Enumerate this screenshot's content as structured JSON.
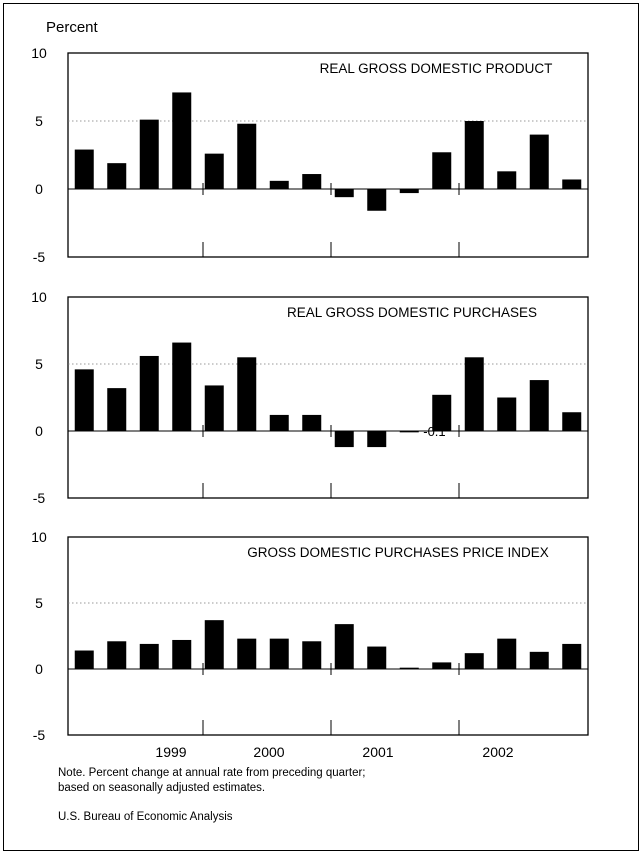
{
  "unit_label": "Percent",
  "x_labels": [
    "1999",
    "2000",
    "2001",
    "2002"
  ],
  "note_line1": "Note. Percent change at annual rate from preceding quarter;",
  "note_line2": "based on seasonally adjusted estimates.",
  "source": "U.S. Bureau of Economic Analysis",
  "chart_data": [
    {
      "type": "bar",
      "title": "REAL GROSS DOMESTIC PRODUCT",
      "ylim": [
        -5,
        10
      ],
      "yticks": [
        10,
        5,
        0,
        -5
      ],
      "values": [
        2.9,
        1.9,
        5.1,
        7.1,
        2.6,
        4.8,
        0.6,
        1.1,
        -0.6,
        -1.6,
        -0.3,
        2.7,
        5.0,
        1.3,
        4.0,
        0.7
      ],
      "annotations": []
    },
    {
      "type": "bar",
      "title": "REAL GROSS DOMESTIC PURCHASES",
      "ylim": [
        -5,
        10
      ],
      "yticks": [
        10,
        5,
        0,
        -5
      ],
      "values": [
        4.6,
        3.2,
        5.6,
        6.6,
        3.4,
        5.5,
        1.2,
        1.2,
        -1.2,
        -1.2,
        -0.1,
        2.7,
        5.5,
        2.5,
        3.8,
        1.4
      ],
      "annotations": [
        {
          "index": 10,
          "text": "-0.1"
        }
      ]
    },
    {
      "type": "bar",
      "title": "GROSS DOMESTIC PURCHASES PRICE INDEX",
      "ylim": [
        -5,
        10
      ],
      "yticks": [
        10,
        5,
        0,
        -5
      ],
      "values": [
        1.4,
        2.1,
        1.9,
        2.2,
        3.7,
        2.3,
        2.3,
        2.1,
        3.4,
        1.7,
        0.1,
        0.5,
        1.2,
        2.3,
        1.3,
        1.9
      ],
      "annotations": []
    }
  ]
}
